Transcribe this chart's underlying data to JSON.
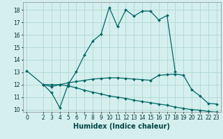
{
  "xlabel": "Humidex (Indice chaleur)",
  "bg_color": "#d4efed",
  "grid_color": "#b0d8d5",
  "line_color": "#006666",
  "xlim": [
    -0.5,
    23.5
  ],
  "ylim": [
    9.8,
    18.6
  ],
  "yticks": [
    10,
    11,
    12,
    13,
    14,
    15,
    16,
    17,
    18
  ],
  "xticks": [
    0,
    2,
    3,
    4,
    5,
    6,
    7,
    8,
    9,
    10,
    11,
    12,
    13,
    14,
    15,
    16,
    17,
    18,
    19,
    20,
    21,
    22,
    23
  ],
  "line1_x": [
    0,
    2,
    3,
    4,
    5,
    6,
    7,
    8,
    9,
    10,
    11,
    12,
    13,
    14,
    15,
    16,
    17,
    18
  ],
  "line1_y": [
    13.1,
    12.0,
    11.35,
    10.15,
    12.0,
    13.05,
    14.4,
    15.5,
    16.05,
    18.2,
    16.65,
    18.0,
    17.5,
    17.9,
    17.9,
    17.2,
    17.55,
    13.05
  ],
  "line2_x": [
    2,
    3,
    4,
    5,
    6,
    7,
    8,
    9,
    10,
    11,
    12,
    13,
    14,
    15,
    16,
    17,
    18,
    19,
    20,
    21,
    22,
    23
  ],
  "line2_y": [
    12.0,
    12.0,
    12.0,
    12.15,
    12.25,
    12.35,
    12.45,
    12.5,
    12.55,
    12.55,
    12.5,
    12.45,
    12.4,
    12.35,
    12.75,
    12.8,
    12.85,
    12.75,
    11.6,
    11.1,
    10.5,
    10.45
  ],
  "line3_x": [
    2,
    3,
    4,
    5,
    6,
    7,
    8,
    9,
    10,
    11,
    12,
    13,
    14,
    15,
    16,
    17,
    18,
    19,
    20,
    21,
    22,
    23
  ],
  "line3_y": [
    12.0,
    11.85,
    12.0,
    11.9,
    11.75,
    11.55,
    11.4,
    11.25,
    11.1,
    11.0,
    10.9,
    10.75,
    10.65,
    10.55,
    10.45,
    10.35,
    10.2,
    10.1,
    10.0,
    9.95,
    9.85,
    9.8
  ],
  "xlabel_fontsize": 7,
  "tick_fontsize": 5.5,
  "marker_size": 2.0,
  "linewidth": 0.9
}
